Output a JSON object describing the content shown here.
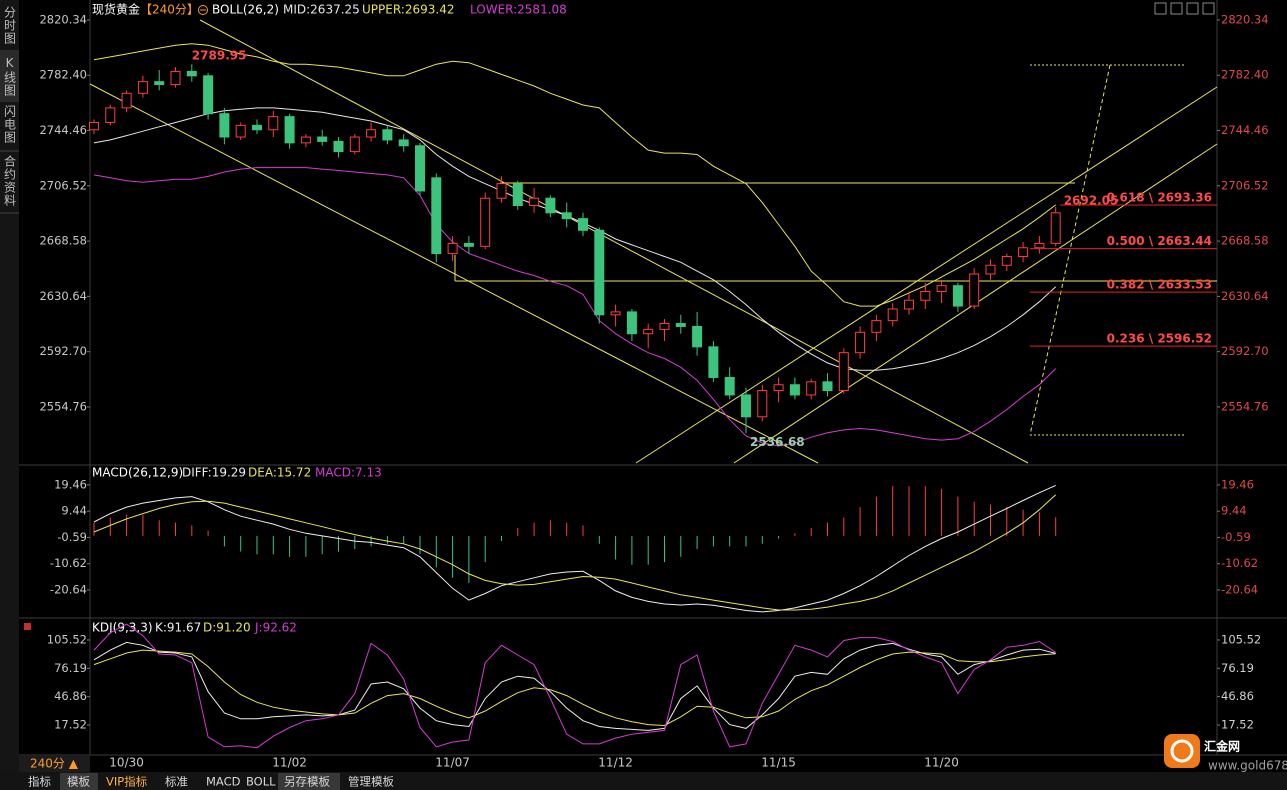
{
  "chart_data": [
    {
      "type": "candlestick",
      "title": "现货黄金",
      "period": "【240分】",
      "indicator": "BOLL(26,2)",
      "categories": [
        null,
        null,
        "10/30",
        null,
        null,
        null,
        null,
        null,
        null,
        null,
        null,
        null,
        "11/02",
        null,
        null,
        null,
        null,
        null,
        null,
        null,
        null,
        null,
        "11/07",
        null,
        null,
        null,
        null,
        null,
        null,
        null,
        null,
        null,
        "11/12",
        null,
        null,
        null,
        null,
        null,
        null,
        null,
        null,
        null,
        "11/15",
        null,
        null,
        null,
        null,
        null,
        null,
        null,
        null,
        null,
        "11/20",
        null,
        null,
        null,
        null,
        null,
        null,
        null
      ],
      "open": [
        2745,
        2750,
        2760,
        2770,
        2778,
        2776,
        2785,
        2782,
        2756,
        2740,
        2748,
        2745,
        2754,
        2736,
        2740,
        2737,
        2730,
        2740,
        2745,
        2738,
        2734,
        2712,
        2660,
        2667,
        2665,
        2698,
        2708,
        2693,
        2698,
        2688,
        2684,
        2676,
        2618,
        2620,
        2605,
        2608,
        2612,
        2610,
        2596,
        2575,
        2563,
        2548,
        2566,
        2570,
        2563,
        2572,
        2566,
        2592,
        2606,
        2614,
        2622,
        2628,
        2634,
        2638,
        2624,
        2646,
        2652,
        2658,
        2664,
        2667
      ],
      "high": [
        2752,
        2762,
        2772,
        2782,
        2786,
        2788,
        2789.95,
        2784,
        2760,
        2750,
        2752,
        2758,
        2756,
        2742,
        2745,
        2740,
        2742,
        2750,
        2748,
        2742,
        2736,
        2715,
        2672,
        2672,
        2702,
        2713,
        2710,
        2705,
        2700,
        2695,
        2688,
        2678,
        2625,
        2622,
        2612,
        2615,
        2618,
        2620,
        2600,
        2582,
        2568,
        2570,
        2575,
        2575,
        2574,
        2578,
        2595,
        2610,
        2618,
        2626,
        2634,
        2640,
        2642,
        2640,
        2650,
        2656,
        2660,
        2668,
        2672,
        2692.05
      ],
      "low": [
        2742,
        2748,
        2757,
        2767,
        2772,
        2774,
        2778,
        2752,
        2735,
        2738,
        2742,
        2740,
        2732,
        2733,
        2734,
        2726,
        2728,
        2737,
        2735,
        2730,
        2700,
        2654,
        2655,
        2660,
        2663,
        2695,
        2690,
        2688,
        2685,
        2678,
        2672,
        2612,
        2610,
        2600,
        2595,
        2600,
        2605,
        2590,
        2572,
        2560,
        2536.68,
        2545,
        2558,
        2560,
        2560,
        2562,
        2564,
        2588,
        2600,
        2610,
        2618,
        2622,
        2626,
        2620,
        2622,
        2642,
        2648,
        2654,
        2660,
        2665
      ],
      "close": [
        2750,
        2760,
        2770,
        2778,
        2776,
        2785,
        2782,
        2756,
        2740,
        2748,
        2745,
        2754,
        2736,
        2740,
        2737,
        2730,
        2740,
        2745,
        2738,
        2734,
        2703,
        2660,
        2667,
        2665,
        2698,
        2708,
        2693,
        2698,
        2688,
        2684,
        2676,
        2618,
        2620,
        2605,
        2608,
        2612,
        2610,
        2596,
        2575,
        2563,
        2548,
        2566,
        2570,
        2563,
        2572,
        2566,
        2592,
        2606,
        2614,
        2622,
        2628,
        2634,
        2638,
        2624,
        2646,
        2652,
        2658,
        2664,
        2667,
        2688
      ],
      "up_color": "#ff3c3c",
      "down_color": "#3cc47c",
      "series": [
        {
          "name": "MID:2637.25",
          "color": "#e6e6e6",
          "values": [
            2736,
            2738,
            2741,
            2744,
            2747,
            2750,
            2753,
            2756,
            2758,
            2759,
            2760,
            2760,
            2759,
            2758,
            2757,
            2755,
            2753,
            2751,
            2748,
            2745,
            2738,
            2728,
            2720,
            2713,
            2708,
            2703,
            2698,
            2694,
            2690,
            2686,
            2681,
            2676,
            2670,
            2666,
            2662,
            2658,
            2654,
            2648,
            2642,
            2634,
            2625,
            2615,
            2606,
            2598,
            2591,
            2585,
            2581,
            2580,
            2580,
            2581,
            2583,
            2585,
            2588,
            2592,
            2597,
            2603,
            2610,
            2618,
            2627,
            2637.25
          ]
        },
        {
          "name": "UPPER:2693.42",
          "color": "#e8e45a",
          "values": [
            2793,
            2795,
            2797,
            2799,
            2801,
            2803,
            2804,
            2803,
            2800,
            2797,
            2795,
            2792,
            2790,
            2790,
            2789,
            2788,
            2786,
            2784,
            2782,
            2782,
            2786,
            2790,
            2792,
            2791,
            2787,
            2783,
            2779,
            2775,
            2770,
            2766,
            2762,
            2760,
            2750,
            2740,
            2731,
            2729,
            2729,
            2728,
            2720,
            2714,
            2708,
            2695,
            2680,
            2665,
            2648,
            2638,
            2627,
            2624,
            2624,
            2628,
            2633,
            2638,
            2644,
            2650,
            2656,
            2663,
            2670,
            2677,
            2685,
            2693.42
          ]
        },
        {
          "name": "LOWER:2581.08",
          "color": "#d43cd4",
          "values": [
            2714,
            2712,
            2710,
            2709,
            2710,
            2711,
            2711,
            2713,
            2716,
            2718,
            2719,
            2719,
            2719,
            2719,
            2718,
            2717,
            2716,
            2715,
            2714,
            2712,
            2700,
            2680,
            2668,
            2660,
            2656,
            2652,
            2648,
            2645,
            2641,
            2638,
            2632,
            2614,
            2605,
            2598,
            2592,
            2588,
            2582,
            2573,
            2560,
            2546,
            2535,
            2530,
            2528,
            2530,
            2534,
            2537,
            2539,
            2540,
            2539,
            2537,
            2535,
            2533,
            2532,
            2533,
            2538,
            2545,
            2553,
            2562,
            2570,
            2581.08
          ]
        }
      ],
      "ylim": [
        2516.3,
        2830.6
      ],
      "yticks": [
        2820.34,
        {
          "value": 2782.4,
          "label": "2782.40"
        },
        2744.46,
        2706.52,
        2668.58,
        2630.64,
        {
          "value": 2592.7,
          "label": "2592.70"
        },
        2554.76
      ],
      "fibonacci": [
        {
          "label": "0.618 \\ 2693.36",
          "value": 2693.36
        },
        {
          "label": "0.500 \\ 2663.44",
          "value": 2663.44
        },
        {
          "label": "0.382 \\ 2633.53",
          "value": 2633.53
        },
        {
          "label": "0.236 \\ 2596.52",
          "value": 2596.52
        }
      ],
      "fib_color": "#e02424"
    },
    {
      "type": "macd",
      "title": "MACD(26,12,9)",
      "series": [
        {
          "name": "DIFF:19.29",
          "color": "#eeeeee",
          "values": [
            5.3,
            8.5,
            11,
            12.5,
            13.5,
            14.5,
            15,
            13,
            10,
            7.5,
            6,
            4.5,
            2.5,
            1,
            0,
            -1,
            -2,
            -2.5,
            -3.5,
            -4.5,
            -8,
            -14,
            -20,
            -24.5,
            -22,
            -19,
            -17.5,
            -16,
            -14.5,
            -13.8,
            -13.5,
            -17,
            -21,
            -23.5,
            -25,
            -26,
            -26.4,
            -26,
            -26.5,
            -27.5,
            -28.5,
            -29,
            -28.5,
            -27.5,
            -26,
            -24.5,
            -22,
            -19,
            -15.5,
            -11.5,
            -7.5,
            -4,
            -1,
            1.5,
            4.5,
            7.5,
            10.5,
            13.5,
            16.5,
            19.29
          ]
        },
        {
          "name": "DEA:15.72",
          "color": "#e8e45a",
          "values": [
            1.5,
            4,
            6.5,
            8.5,
            10.5,
            12,
            13,
            13.2,
            12.5,
            11,
            9.5,
            8,
            6.5,
            5,
            3.5,
            2,
            0.5,
            -0.8,
            -2,
            -3,
            -5,
            -8,
            -11,
            -14.5,
            -17,
            -18.3,
            -18.8,
            -18.5,
            -17.5,
            -16.5,
            -15.5,
            -15.8,
            -16.5,
            -18,
            -19.5,
            -21,
            -22.5,
            -23.5,
            -24.5,
            -25.5,
            -26.5,
            -27.5,
            -28.3,
            -28.3,
            -28,
            -27.2,
            -26,
            -25,
            -23.5,
            -21,
            -18,
            -15,
            -12,
            -9,
            -6,
            -2.5,
            1,
            5,
            10,
            15.72
          ]
        }
      ],
      "histogram": {
        "name": "MACD:7.13",
        "color": "#d43cd4",
        "up_color": "#ff3c3c",
        "down_color": "#3cc47c",
        "values": [
          5,
          7,
          8,
          8,
          6,
          5,
          4,
          2,
          -4,
          -6,
          -7,
          -7,
          -8,
          -8,
          -7,
          -6,
          -5,
          -4,
          -3,
          -3,
          -7,
          -12,
          -16,
          -18,
          -10,
          -2,
          3,
          5,
          6,
          5,
          4,
          -3,
          -9,
          -11,
          -11,
          -10,
          -8,
          -5,
          -4,
          -4,
          -4,
          -3,
          -1,
          1,
          3,
          5,
          7,
          11,
          15,
          19,
          19,
          19,
          18,
          15,
          13,
          12,
          11,
          10,
          9,
          7.13
        ]
      },
      "ylim": [
        -30.2,
        26.3
      ],
      "yticks": [
        19.46,
        9.44,
        -0.59,
        -10.62,
        -20.64
      ]
    },
    {
      "type": "kdj",
      "title": "KDJ(9,3,3)",
      "series": [
        {
          "name": "K:91.67",
          "color": "#eeeeee",
          "values": [
            85,
            95,
            103,
            100,
            93,
            92,
            88,
            52,
            30,
            24,
            24,
            26,
            27,
            28,
            27,
            28,
            33,
            60,
            62,
            55,
            35,
            22,
            18,
            16,
            45,
            62,
            68,
            66,
            52,
            35,
            22,
            16,
            14,
            13,
            12,
            14,
            45,
            58,
            35,
            18,
            14,
            28,
            45,
            68,
            72,
            70,
            86,
            95,
            100,
            102,
            96,
            91,
            88,
            70,
            80,
            84,
            90,
            95,
            96,
            91.67
          ]
        },
        {
          "name": "D:91.20",
          "color": "#e8e45a",
          "values": [
            80,
            86,
            92,
            95,
            94,
            93,
            91,
            78,
            62,
            49,
            41,
            36,
            33,
            31,
            29,
            28,
            30,
            40,
            48,
            50,
            45,
            37,
            30,
            25,
            32,
            42,
            51,
            56,
            54,
            48,
            39,
            31,
            25,
            21,
            18,
            17,
            26,
            37,
            36,
            30,
            25,
            26,
            32,
            44,
            53,
            59,
            68,
            77,
            85,
            91,
            93,
            92,
            91,
            84,
            83,
            83,
            85,
            88,
            90,
            91.2
          ]
        },
        {
          "name": "J:92.62",
          "color": "#d43cd4",
          "values": [
            95,
            113,
            122,
            110,
            91,
            90,
            82,
            5,
            -5,
            -4,
            -6,
            6,
            15,
            22,
            24,
            28,
            50,
            102,
            90,
            65,
            15,
            -5,
            0,
            2,
            82,
            100,
            90,
            80,
            45,
            8,
            -2,
            -2,
            4,
            8,
            10,
            12,
            80,
            90,
            32,
            -5,
            -2,
            40,
            70,
            100,
            95,
            88,
            105,
            108,
            108,
            104,
            95,
            88,
            82,
            50,
            75,
            85,
            98,
            100,
            104,
            92.62
          ]
        }
      ],
      "ylim": [
        -10.4,
        126.2
      ],
      "yticks": [
        105.52,
        76.19,
        46.86,
        17.52
      ]
    }
  ],
  "ui": {
    "sidebar": [
      "分时图",
      "K线图",
      "闪电图",
      "合约资料"
    ],
    "period_button": "240分 ▲",
    "toolbar": [
      "指标",
      "模板",
      "VIP指标",
      "标准",
      "MACD",
      "BOLL",
      "另存模板",
      "管理模板"
    ],
    "logo": {
      "name": "汇金网",
      "url": "www.gold678.com"
    }
  }
}
